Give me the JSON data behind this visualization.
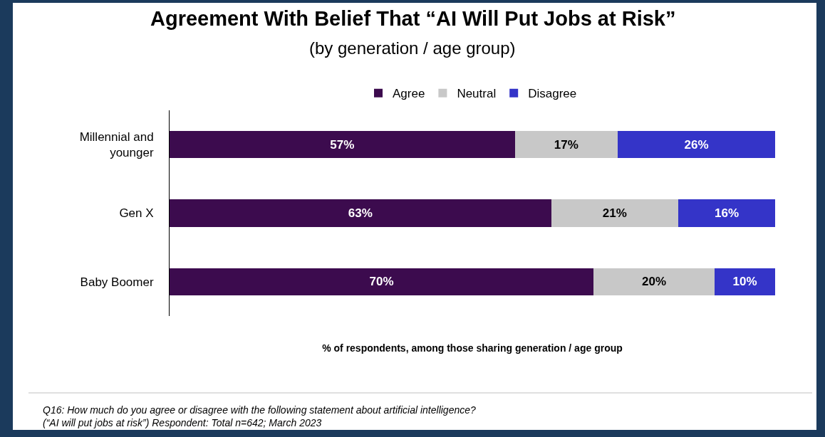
{
  "chart_data": {
    "type": "bar",
    "orientation": "horizontal",
    "stacked": true,
    "data_labels": true,
    "title": "Agreement With Belief That “AI Will Put Jobs at Risk”",
    "subtitle": "(by generation / age group)",
    "xlabel": "% of respondents, among those sharing generation / age group",
    "categories": [
      "Millennial and younger",
      "Gen X",
      "Baby Boomer"
    ],
    "xlim": [
      0,
      100
    ],
    "series": [
      {
        "name": "Agree",
        "color": "#3c0b4e",
        "values": [
          57,
          63,
          70
        ],
        "value_labels": [
          "57%",
          "63%",
          "70%"
        ]
      },
      {
        "name": "Neutral",
        "color": "#c8c8c8",
        "values": [
          17,
          21,
          20
        ],
        "value_labels": [
          "17%",
          "21%",
          "20%"
        ]
      },
      {
        "name": "Disagree",
        "color": "#3434c8",
        "values": [
          26,
          16,
          10
        ],
        "value_labels": [
          "26%",
          "16%",
          "10%"
        ]
      }
    ],
    "legend": "top",
    "tick_labels": "y",
    "annotations": [
      "Q16: How much do you agree or disagree with the following statement about artificial intelligence?\n(“AI will put jobs at risk”) Respondent: Total n=642; March 2023"
    ]
  }
}
